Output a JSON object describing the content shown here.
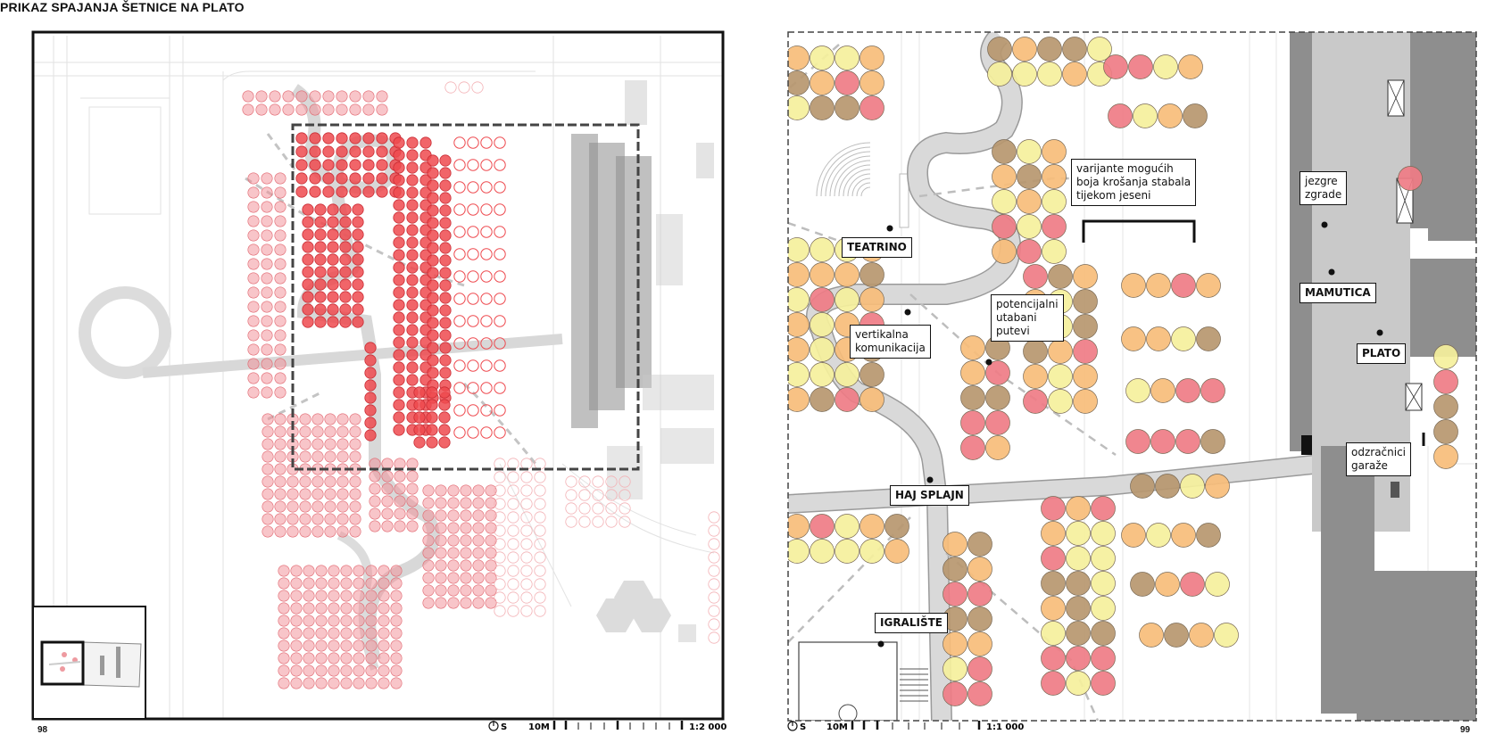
{
  "title": "PRIKAZ SPAJANJA ŠETNICE NA PLATO",
  "left_panel": {
    "page_number": "98",
    "scale": {
      "north": "S",
      "distance": "10M",
      "ratio": "1:2 000"
    }
  },
  "right_panel": {
    "page_number": "99",
    "scale": {
      "north": "S",
      "distance": "10M",
      "ratio": "1:1 000"
    },
    "labels": {
      "teatrino": "TEATRINO",
      "vertikalna": [
        "vertikalna",
        "komunikacija"
      ],
      "potencijalni": [
        "potencijalni",
        "utabani",
        "putevi"
      ],
      "varijante": [
        "varijante mogućih",
        "boja krošanja stabala",
        "tijekom jeseni"
      ],
      "haj_splajn": "HAJ SPLAJN",
      "igraliste": "IGRALIŠTE",
      "jezgre": [
        "jezgre",
        "zgrade"
      ],
      "mamutica": "MAMUTICA",
      "plato": "PLATO",
      "odzracnici": [
        "odzračnici",
        "garaže"
      ]
    },
    "tree_colors": {
      "yellow": "#f5f09c",
      "orange": "#f7bd7a",
      "brown": "#b7976f",
      "red": "#ef7c86"
    }
  },
  "colors": {
    "accent_red": "#ee4a4f",
    "path_gray": "#d8d8d8",
    "building_dark": "#8c8c8c",
    "building_light": "#c9c9c9"
  }
}
